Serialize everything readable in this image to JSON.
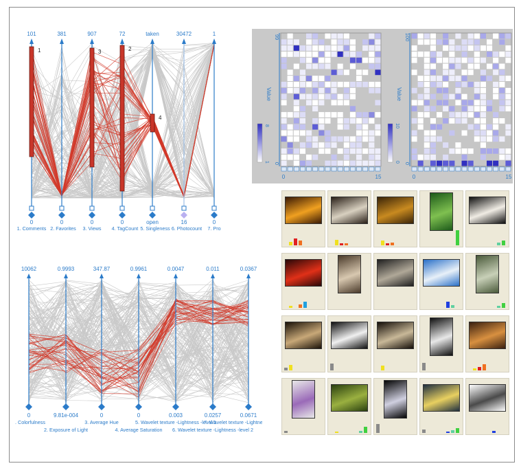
{
  "social_plot": {
    "top_labels": [
      "101",
      "381",
      "907",
      "72",
      "taken",
      "30472",
      "1"
    ],
    "bottom_labels": [
      "0",
      "0",
      "0",
      "0",
      "open",
      "16",
      "0"
    ],
    "axis_names": [
      "1. Comments",
      "2. Favorites",
      "3. Views",
      "4. TagCount",
      "5. Singleness",
      "6. Photocount",
      "7. Pro"
    ],
    "selected_marks": [
      "1",
      "3",
      "2",
      "4"
    ],
    "colors": {
      "axis": "#2b7bc9",
      "context": "#c9c9c9",
      "selected": "#d23a2a",
      "bar": "#c8362a"
    }
  },
  "visual_plot": {
    "top_labels": [
      "10062",
      "0.9993",
      "347.87",
      "0.9961",
      "0.0047",
      "0.011",
      "0.0367"
    ],
    "bottom_labels": [
      "0",
      "9.81e-004",
      "0",
      "0",
      "0.003",
      "0.0257",
      "0.0671"
    ],
    "axis_names": [
      "1. Colorfulness",
      "2. Exposure of Light",
      "3. Average Hue",
      "4. Average Saturation",
      "5. Wavelet texture -Lightness -level 1",
      "6. Wavelet texture -Lightness -level 2",
      "7. Wavelet texture -Lightne"
    ]
  },
  "heatmaps": [
    {
      "y_title": "Value",
      "y_top": "99",
      "y_bottom": "0",
      "x_min": "0",
      "x_max": "15",
      "legend_top": "8",
      "legend_bottom": "1"
    },
    {
      "y_title": "Value",
      "y_top": "100",
      "y_bottom": "0",
      "x_min": "0",
      "x_max": "15",
      "legend_top": "10",
      "legend_bottom": "0"
    }
  ],
  "thumbnails": [
    {
      "icon": "sunset-photo-icon",
      "c1": "#3a1a05",
      "c2": "#f0a020",
      "portrait": false,
      "hist": [
        0,
        5,
        9,
        6,
        0,
        0,
        0,
        0
      ]
    },
    {
      "icon": "flower-photo-icon",
      "c1": "#2a2018",
      "c2": "#d8d0c0",
      "portrait": false,
      "hist": [
        0,
        7,
        3,
        3,
        0,
        0,
        0,
        0
      ]
    },
    {
      "icon": "golden-room-photo-icon",
      "c1": "#3a2408",
      "c2": "#c88a20",
      "portrait": false,
      "hist": [
        0,
        6,
        3,
        4,
        0,
        0,
        0,
        0
      ]
    },
    {
      "icon": "garden-photo-icon",
      "c1": "#1d5a1a",
      "c2": "#7fc050",
      "portrait": true,
      "hist": [
        0,
        0,
        0,
        0,
        0,
        0,
        0,
        20
      ]
    },
    {
      "icon": "rose-frame-photo-icon",
      "c1": "#101010",
      "c2": "#f0ece4",
      "portrait": false,
      "hist": [
        0,
        0,
        0,
        0,
        0,
        0,
        4,
        6
      ]
    },
    {
      "icon": "red-sky-photo-icon",
      "c1": "#2a0808",
      "c2": "#e03018",
      "portrait": false,
      "hist": [
        0,
        3,
        0,
        5,
        8,
        0,
        0,
        0
      ]
    },
    {
      "icon": "portrait-photo-icon",
      "c1": "#4a3a2a",
      "c2": "#d8c8b0",
      "portrait": true,
      "hist": [
        0,
        0,
        0,
        0,
        0,
        0,
        0,
        0
      ]
    },
    {
      "icon": "rose-book-photo-icon",
      "c1": "#202020",
      "c2": "#b0a898",
      "portrait": false,
      "hist": [
        0,
        0,
        0,
        0,
        0,
        0,
        0,
        0
      ]
    },
    {
      "icon": "cloudy-sky-photo-icon",
      "c1": "#2a70c8",
      "c2": "#e8f0f8",
      "portrait": false,
      "hist": [
        0,
        0,
        0,
        0,
        0,
        8,
        4,
        0
      ]
    },
    {
      "icon": "misty-trees-photo-icon",
      "c1": "#4a5a3a",
      "c2": "#c8d0b8",
      "portrait": true,
      "hist": [
        0,
        0,
        0,
        0,
        0,
        0,
        3,
        6
      ]
    },
    {
      "icon": "hands-photo-icon",
      "c1": "#1a1208",
      "c2": "#c8a878",
      "portrait": false,
      "hist": [
        4,
        7,
        0,
        0,
        0,
        0,
        0,
        0
      ]
    },
    {
      "icon": "mono-abstract-photo-icon",
      "c1": "#101010",
      "c2": "#f0f0f0",
      "portrait": false,
      "hist": [
        9,
        0,
        0,
        0,
        0,
        0,
        0,
        0
      ]
    },
    {
      "icon": "city-night-photo-icon",
      "c1": "#140e08",
      "c2": "#c8b898",
      "portrait": false,
      "hist": [
        0,
        6,
        0,
        0,
        0,
        0,
        0,
        0
      ]
    },
    {
      "icon": "waterfall-photo-icon",
      "c1": "#101010",
      "c2": "#e8e8e8",
      "portrait": true,
      "hist": [
        10,
        0,
        0,
        0,
        0,
        0,
        0,
        0
      ]
    },
    {
      "icon": "clock-photo-icon",
      "c1": "#3a2010",
      "c2": "#d89040",
      "portrait": false,
      "hist": [
        0,
        3,
        5,
        8,
        0,
        0,
        0,
        0
      ]
    },
    {
      "icon": "robot-hand-photo-icon",
      "c1": "#e8e8e8",
      "c2": "#9a6ab8",
      "portrait": true,
      "hist": [
        3,
        0,
        0,
        0,
        0,
        0,
        0,
        0
      ]
    },
    {
      "icon": "bokeh-grass-photo-icon",
      "c1": "#2a4010",
      "c2": "#9ab040",
      "portrait": false,
      "hist": [
        0,
        2,
        0,
        0,
        0,
        0,
        3,
        8
      ]
    },
    {
      "icon": "skyline-night-photo-icon",
      "c1": "#050505",
      "c2": "#d0d0e0",
      "portrait": true,
      "hist": [
        12,
        0,
        0,
        0,
        0,
        0,
        0,
        0
      ]
    },
    {
      "icon": "lake-sunset-photo-icon",
      "c1": "#203040",
      "c2": "#e8d060",
      "portrait": false,
      "hist": [
        5,
        0,
        0,
        0,
        0,
        2,
        4,
        6
      ]
    },
    {
      "icon": "photo-collage-icon",
      "c1": "#ffffff",
      "c2": "#4a4a4a",
      "portrait": false,
      "hist": [
        0,
        0,
        0,
        0,
        0,
        3,
        0,
        0
      ]
    }
  ]
}
